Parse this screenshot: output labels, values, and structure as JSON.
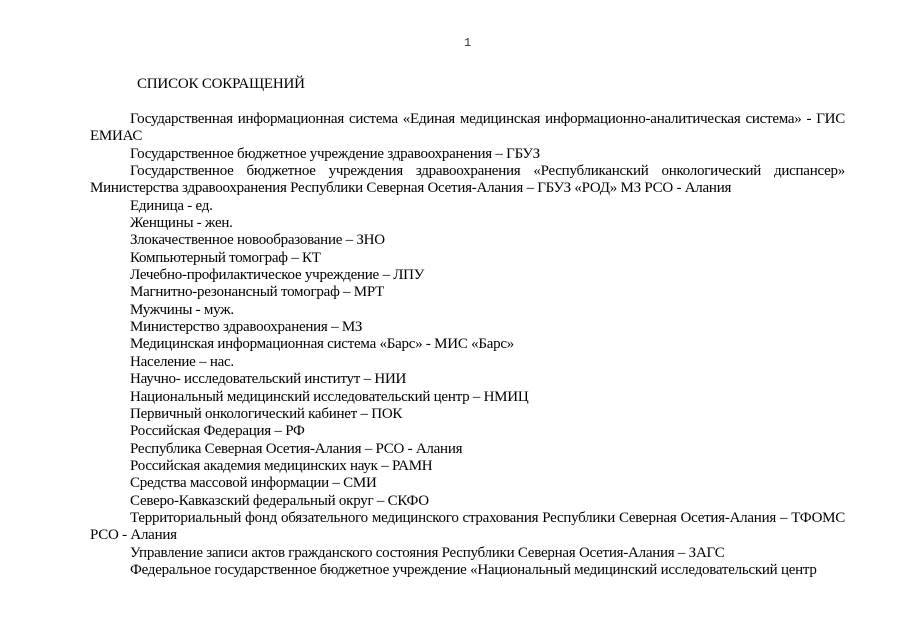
{
  "page_number": "1",
  "title": "СПИСОК  СОКРАЩЕНИЙ",
  "items": [
    "Государственная информационная система «Единая медицинская информационно-аналитическая система» - ГИС ЕМИАС",
    "Государственное бюджетное учреждение здравоохранения – ГБУЗ",
    "Государственное бюджетное учреждения здравоохранения «Республиканский онкологический диспансер» Министерства здравоохранения Республики Северная Осетия-Алания – ГБУЗ «РОД» МЗ РСО - Алания",
    "Единица - ед.",
    "Женщины - жен.",
    "Злокачественное новообразование – ЗНО",
    "Компьютерный томограф – КТ",
    "Лечебно-профилактическое учреждение – ЛПУ",
    "Магнитно-резонансный томограф – МРТ",
    "Мужчины - муж.",
    "Министерство здравоохранения – МЗ",
    "Медицинская информационная система  «Барс» - МИС «Барс»",
    "Население – нас.",
    "Научно- исследовательский институт – НИИ",
    "Национальный медицинский исследовательский центр – НМИЦ",
    "Первичный онкологический кабинет – ПОК",
    "Российская Федерация – РФ",
    "Республика Северная Осетия-Алания – РСО - Алания",
    "Российская академия медицинских наук – РАМН",
    "Средства массовой информации – СМИ",
    "Северо-Кавказский федеральный  округ – СКФО",
    "Территориальный фонд обязательного медицинского страхования Республики Северная Осетия-Алания – ТФОМС РСО - Алания",
    "Управление записи актов гражданского состояния Республики Северная Осетия-Алания – ЗАГС",
    "Федеральное государственное бюджетное учреждение «Национальный медицинский исследовательский центр"
  ]
}
